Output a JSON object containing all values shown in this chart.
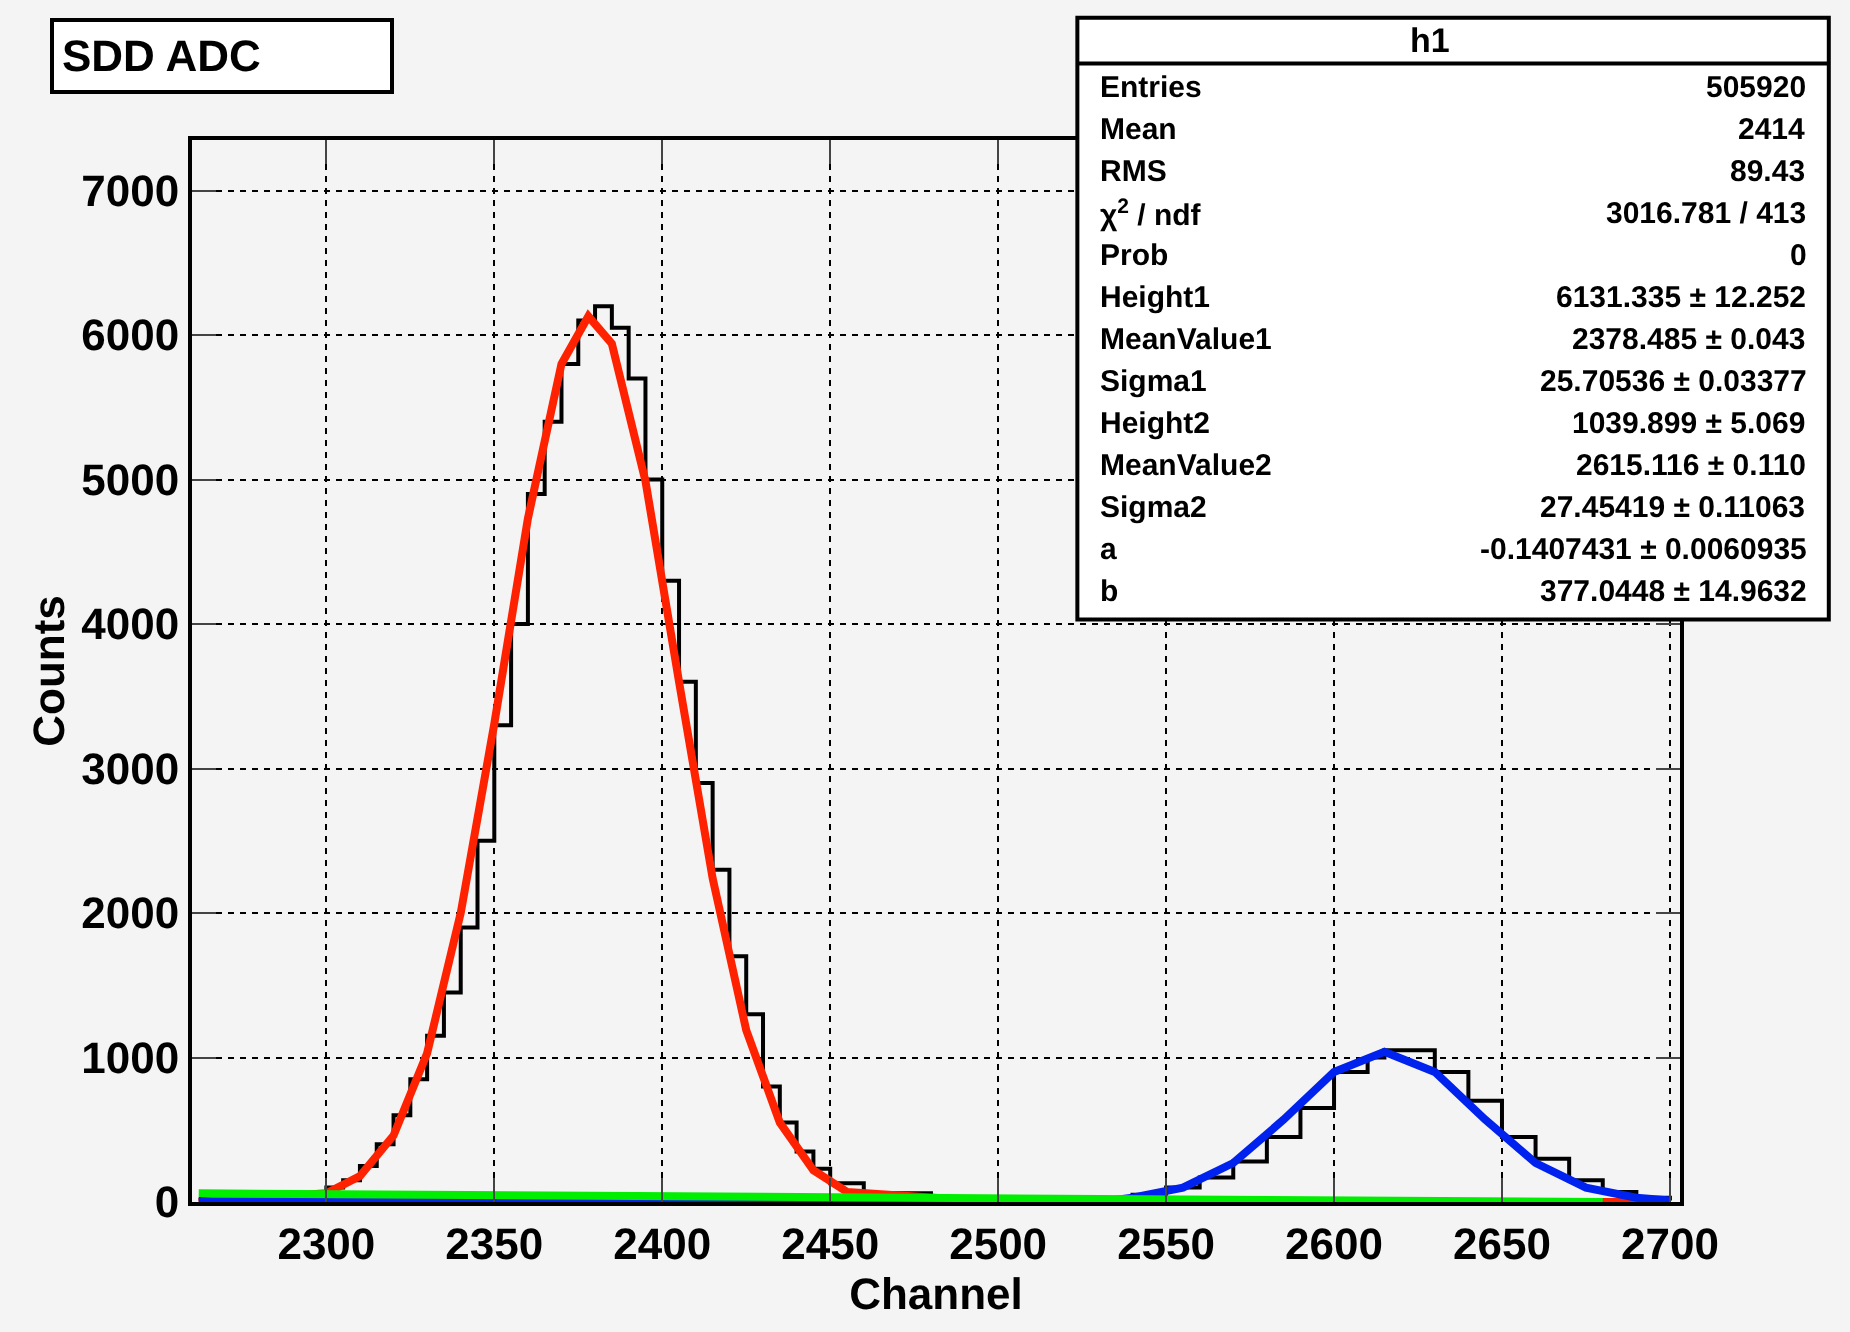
{
  "chart_data": {
    "type": "line",
    "title": "SDD ADC",
    "xlabel": "Channel",
    "ylabel": "Counts",
    "xlim": [
      2260,
      2703
    ],
    "ylim": [
      0,
      7350
    ],
    "xticks": [
      2300,
      2350,
      2400,
      2450,
      2500,
      2550,
      2600,
      2650,
      2700
    ],
    "yticks": [
      0,
      1000,
      2000,
      3000,
      4000,
      5000,
      6000,
      7000
    ],
    "grid": true,
    "marker": "none",
    "line_style": "solid",
    "series": [
      {
        "type": "step",
        "color": "#000000",
        "x": [
          2262,
          2270,
          2280,
          2290,
          2300,
          2305,
          2310,
          2315,
          2320,
          2325,
          2330,
          2335,
          2340,
          2345,
          2350,
          2355,
          2360,
          2365,
          2370,
          2375,
          2380,
          2385,
          2390,
          2395,
          2400,
          2405,
          2410,
          2415,
          2420,
          2425,
          2430,
          2435,
          2440,
          2445,
          2450,
          2460,
          2480,
          2500,
          2520,
          2540,
          2550,
          2560,
          2570,
          2580,
          2590,
          2600,
          2610,
          2615,
          2620,
          2630,
          2640,
          2650,
          2660,
          2670,
          2680,
          2690,
          2700
        ],
        "values": [
          20,
          30,
          40,
          60,
          100,
          150,
          250,
          400,
          600,
          850,
          1150,
          1450,
          1900,
          2500,
          3300,
          4000,
          4900,
          5400,
          5800,
          6100,
          6200,
          6050,
          5700,
          5000,
          4300,
          3600,
          2900,
          2300,
          1700,
          1300,
          800,
          550,
          350,
          230,
          130,
          60,
          30,
          20,
          20,
          50,
          100,
          170,
          280,
          450,
          650,
          900,
          1000,
          1050,
          1050,
          900,
          700,
          450,
          300,
          150,
          70,
          30,
          10
        ]
      },
      {
        "color": "#ff2200",
        "x": [
          2262,
          2300,
          2310,
          2320,
          2330,
          2340,
          2350,
          2360,
          2370,
          2378,
          2385,
          2395,
          2405,
          2415,
          2425,
          2435,
          2445,
          2455,
          2500,
          2700
        ],
        "values": [
          0,
          60,
          180,
          460,
          1030,
          2000,
          3310,
          4730,
          5800,
          6130,
          5940,
          4990,
          3600,
          2240,
          1190,
          550,
          220,
          70,
          0,
          0
        ]
      },
      {
        "color": "#0022ee",
        "x": [
          2262,
          2530,
          2540,
          2555,
          2570,
          2585,
          2600,
          2615,
          2630,
          2645,
          2660,
          2675,
          2690,
          2700
        ],
        "values": [
          0,
          0,
          30,
          100,
          270,
          570,
          900,
          1040,
          900,
          570,
          270,
          100,
          30,
          10
        ]
      },
      {
        "color": "#00ee00",
        "x": [
          2262,
          2680
        ],
        "values": [
          60,
          0
        ]
      }
    ],
    "annotations": [
      "h1",
      "Entries",
      "505920",
      "Mean",
      "2414",
      "RMS",
      "89.43",
      "χ$^{2}$ / ndf",
      "3016.781 / 413",
      "Prob",
      "0",
      "Height1",
      "6131.335 ± 12.252",
      "MeanValue1",
      "2378.485 ± 0.043",
      "Sigma1",
      "25.70536 ± 0.03377",
      "Height2",
      "1039.899 ± 5.069",
      "MeanValue2",
      "2615.116 ± 0.110",
      "Sigma2",
      "27.45419 ± 0.11063",
      "a",
      "-0.1407431 ± 0.0060935",
      "b",
      "377.0448 ± 14.9632"
    ]
  }
}
